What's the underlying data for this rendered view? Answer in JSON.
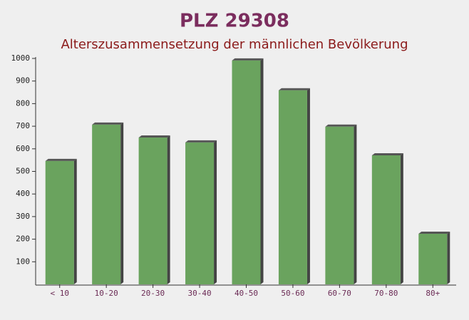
{
  "chart_data": {
    "type": "bar",
    "title": "PLZ 29308",
    "subtitle": "Alterszusammensetzung der männlichen Bevölkerung",
    "categories": [
      "< 10",
      "10-20",
      "20-30",
      "30-40",
      "40-50",
      "50-60",
      "60-70",
      "70-80",
      "80+"
    ],
    "values": [
      546,
      707,
      650,
      628,
      991,
      859,
      698,
      571,
      224
    ],
    "color": "#6aa35e",
    "ylim": [
      0,
      1000
    ],
    "yticks": [
      100,
      200,
      300,
      400,
      500,
      600,
      700,
      800,
      900,
      1000
    ]
  }
}
